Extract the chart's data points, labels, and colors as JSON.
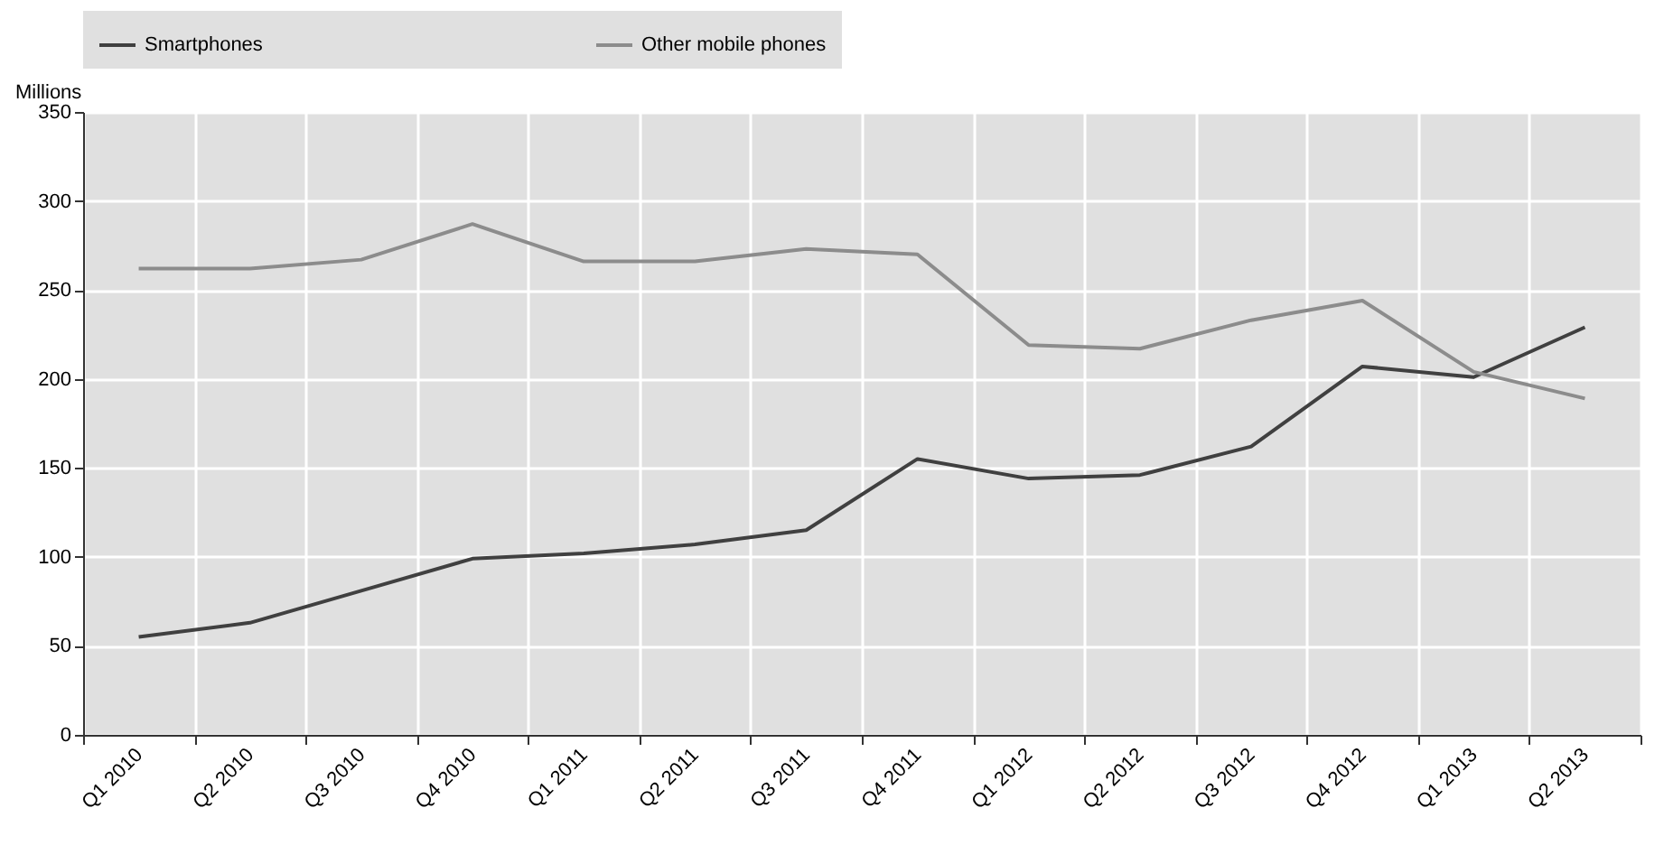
{
  "chart_data": {
    "type": "line",
    "ylabel": "Millions",
    "categories": [
      "Q1 2010",
      "Q2 2010",
      "Q3 2010",
      "Q4 2010",
      "Q1 2011",
      "Q2 2011",
      "Q3 2011",
      "Q4 2011",
      "Q1 2012",
      "Q2 2012",
      "Q3 2012",
      "Q4 2012",
      "Q1 2013",
      "Q2 2013"
    ],
    "series": [
      {
        "name": "Smartphones",
        "color": "#404040",
        "values": [
          55,
          63,
          81,
          99,
          102,
          107,
          115,
          155,
          144,
          146,
          162,
          207,
          201,
          229
        ]
      },
      {
        "name": "Other mobile phones",
        "color": "#8c8c8c",
        "values": [
          262,
          262,
          267,
          287,
          266,
          266,
          273,
          270,
          219,
          217,
          233,
          244,
          204,
          189
        ]
      }
    ],
    "ylim": [
      0,
      350
    ],
    "yticks": [
      0,
      50,
      100,
      150,
      200,
      250,
      300,
      350
    ],
    "grid": true,
    "legend": "top",
    "marker": "none",
    "line_style": "solid"
  }
}
